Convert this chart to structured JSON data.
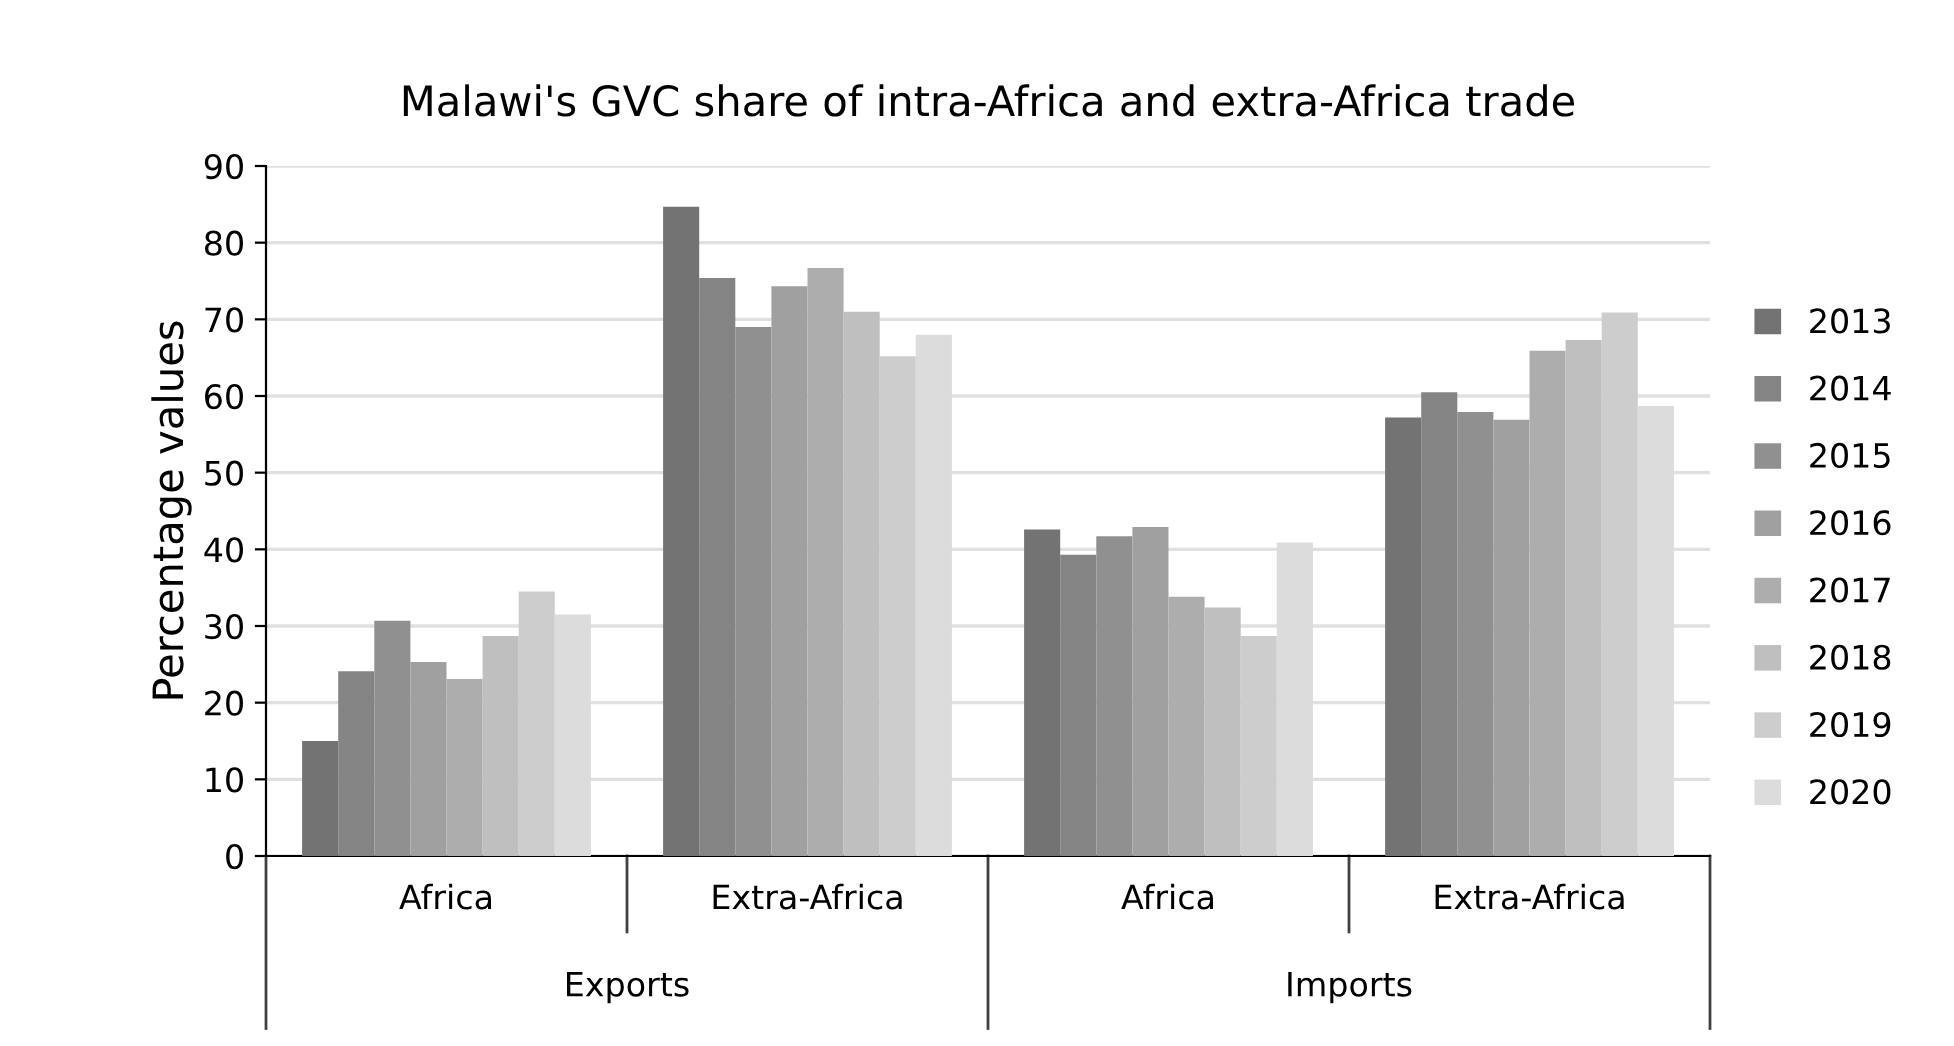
{
  "chart_data": {
    "type": "bar",
    "title": "Malawi's GVC share of intra-Africa and extra-Africa trade",
    "ylabel": "Percentage values",
    "categories": [
      "Africa",
      "Extra-Africa",
      "Africa",
      "Extra-Africa"
    ],
    "annotations": [
      "Exports",
      "Imports"
    ],
    "series": [
      {
        "name": "2013",
        "color": "#737373",
        "values": [
          15.0,
          84.7,
          42.6,
          57.2
        ]
      },
      {
        "name": "2014",
        "color": "#848484",
        "values": [
          24.1,
          75.4,
          39.3,
          60.5
        ]
      },
      {
        "name": "2015",
        "color": "#909090",
        "values": [
          30.7,
          69.0,
          41.7,
          57.9
        ]
      },
      {
        "name": "2016",
        "color": "#a0a0a0",
        "values": [
          25.3,
          74.3,
          42.9,
          56.9
        ]
      },
      {
        "name": "2017",
        "color": "#adadad",
        "values": [
          23.1,
          76.7,
          33.8,
          65.9
        ]
      },
      {
        "name": "2018",
        "color": "#bfbfbf",
        "values": [
          28.7,
          71.0,
          32.4,
          67.3
        ]
      },
      {
        "name": "2019",
        "color": "#cdcdcd",
        "values": [
          34.5,
          65.2,
          28.7,
          70.9
        ]
      },
      {
        "name": "2020",
        "color": "#dcdcdc",
        "values": [
          31.5,
          68.0,
          40.9,
          58.7
        ]
      }
    ],
    "ylim": [
      0,
      90
    ],
    "yticks": [
      0,
      10,
      20,
      30,
      40,
      50,
      60,
      70,
      80,
      90
    ],
    "grid": "y",
    "legend": "right"
  }
}
